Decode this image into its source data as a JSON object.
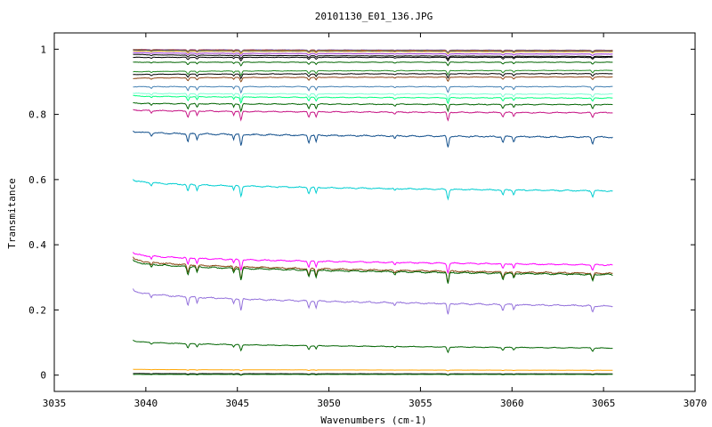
{
  "chart_data": {
    "type": "line",
    "title": "20101130_E01_136.JPG",
    "xlabel": "Wavenumbers (cm-1)",
    "ylabel": "Transmitance",
    "xlim": [
      3035,
      3070
    ],
    "ylim": [
      -0.05,
      1.05
    ],
    "xticks": [
      3035,
      3040,
      3045,
      3050,
      3055,
      3060,
      3065,
      3070
    ],
    "yticks": [
      0,
      0.2,
      0.4,
      0.6,
      0.8,
      1
    ],
    "ytick_labels": [
      "0",
      "0.2",
      "0.4",
      "0.6",
      "0.8",
      "1"
    ],
    "x_range": [
      3039.3,
      3065.5
    ],
    "grid": false,
    "legend": "none",
    "dips": [
      {
        "x": 3040.3,
        "depth": 0.25,
        "width": 0.06
      },
      {
        "x": 3042.3,
        "depth": 0.6,
        "width": 0.07
      },
      {
        "x": 3042.8,
        "depth": 0.45,
        "width": 0.06
      },
      {
        "x": 3045.2,
        "depth": 0.9,
        "width": 0.07
      },
      {
        "x": 3044.8,
        "depth": 0.35,
        "width": 0.05
      },
      {
        "x": 3048.9,
        "depth": 0.55,
        "width": 0.07
      },
      {
        "x": 3049.3,
        "depth": 0.5,
        "width": 0.06
      },
      {
        "x": 3053.6,
        "depth": 0.2,
        "width": 0.06
      },
      {
        "x": 3056.5,
        "depth": 0.85,
        "width": 0.07
      },
      {
        "x": 3059.5,
        "depth": 0.45,
        "width": 0.07
      },
      {
        "x": 3060.1,
        "depth": 0.4,
        "width": 0.06
      },
      {
        "x": 3064.4,
        "depth": 0.5,
        "width": 0.07
      }
    ],
    "series": [
      {
        "color": "#6a5acd",
        "start": 1.0,
        "end": 0.997,
        "scale": 0.008
      },
      {
        "color": "#ff4500",
        "start": 0.999,
        "end": 0.996,
        "scale": 0.008
      },
      {
        "color": "#2e8b57",
        "start": 0.998,
        "end": 0.995,
        "scale": 0.008
      },
      {
        "color": "#b22222",
        "start": 0.997,
        "end": 0.994,
        "scale": 0.008
      },
      {
        "color": "#1e90ff",
        "start": 0.996,
        "end": 0.993,
        "scale": 0.008
      },
      {
        "color": "#daa520",
        "start": 0.995,
        "end": 0.992,
        "scale": 0.008
      },
      {
        "color": "#9932cc",
        "start": 0.99,
        "end": 0.985,
        "scale": 0.008
      },
      {
        "color": "#000000",
        "start": 0.985,
        "end": 0.978,
        "scale": 0.01
      },
      {
        "color": "#000000",
        "start": 0.975,
        "end": 0.975,
        "scale": 0.012
      },
      {
        "color": "#006400",
        "start": 0.96,
        "end": 0.96,
        "scale": 0.012
      },
      {
        "color": "#228b22",
        "start": 0.93,
        "end": 0.935,
        "scale": 0.015
      },
      {
        "color": "#000000",
        "start": 0.922,
        "end": 0.925,
        "scale": 0.015
      },
      {
        "color": "#8b4513",
        "start": 0.91,
        "end": 0.915,
        "scale": 0.015
      },
      {
        "color": "#4682b4",
        "start": 0.885,
        "end": 0.885,
        "scale": 0.02
      },
      {
        "color": "#7fffd4",
        "start": 0.865,
        "end": 0.862,
        "scale": 0.02
      },
      {
        "color": "#00ff7f",
        "start": 0.858,
        "end": 0.85,
        "scale": 0.02
      },
      {
        "color": "#006400",
        "start": 0.835,
        "end": 0.83,
        "scale": 0.025
      },
      {
        "color": "#c71585",
        "start": 0.815,
        "end": 0.805,
        "scale": 0.03
      },
      {
        "color": "#104e8b",
        "start": 0.75,
        "end": 0.73,
        "scale": 0.04
      },
      {
        "color": "#00ced1",
        "start": 0.602,
        "end": 0.565,
        "scale": 0.035
      },
      {
        "color": "#ff00ff",
        "start": 0.378,
        "end": 0.338,
        "scale": 0.035
      },
      {
        "color": "#8b4513",
        "start": 0.362,
        "end": 0.312,
        "scale": 0.04
      },
      {
        "color": "#006400",
        "start": 0.355,
        "end": 0.308,
        "scale": 0.04
      },
      {
        "color": "#9370db",
        "start": 0.265,
        "end": 0.212,
        "scale": 0.04
      },
      {
        "color": "#006400",
        "start": 0.108,
        "end": 0.083,
        "scale": 0.02
      },
      {
        "color": "#ffa500",
        "start": 0.018,
        "end": 0.015,
        "scale": 0.003
      },
      {
        "color": "#000000",
        "start": 0.005,
        "end": 0.004,
        "scale": 0.004
      },
      {
        "color": "#228b22",
        "start": 0.002,
        "end": 0.002,
        "scale": 0.003
      }
    ]
  }
}
